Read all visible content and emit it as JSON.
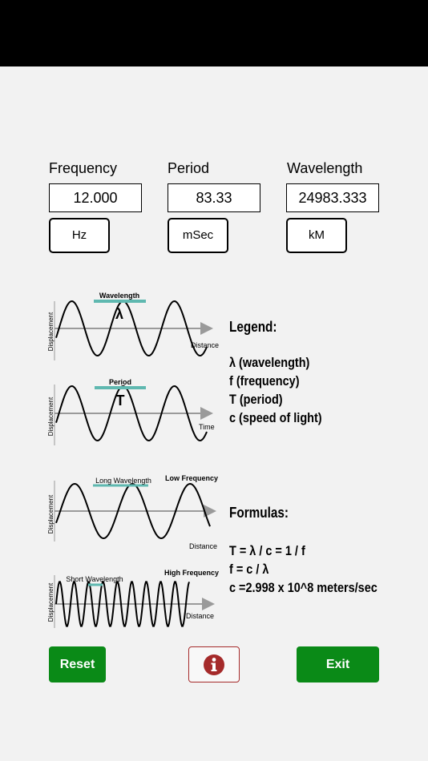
{
  "columns": [
    {
      "label": "Frequency",
      "value": "12.000",
      "unit": "Hz"
    },
    {
      "label": "Period",
      "value": "83.33",
      "unit": "mSec"
    },
    {
      "label": "Wavelength",
      "value": "24983.333",
      "unit": "kM"
    }
  ],
  "diagram": {
    "wave1": {
      "top_label": "Wavelength",
      "symbol": "λ",
      "y_axis": "Displacement",
      "x_axis": "Distance"
    },
    "wave2": {
      "top_label": "Period",
      "symbol": "T",
      "y_axis": "Displacement",
      "x_axis": "Time"
    },
    "wave3": {
      "top_label": "Long Wavelength",
      "corner_label": "Low Frequency",
      "y_axis": "Displacement",
      "x_axis": "Distance"
    },
    "wave4": {
      "top_label": "Short Wavelength",
      "corner_label": "High Frequency",
      "y_axis": "Displacement",
      "x_axis": "Distance"
    }
  },
  "legend": {
    "title": "Legend:",
    "items": [
      "λ (wavelength)",
      "f (frequency)",
      "T (period)",
      "c (speed of light)"
    ]
  },
  "formulas": {
    "title": "Formulas:",
    "items": [
      "T = λ / c = 1 / f",
      "f  = c / λ",
      "c =2.998 x 10^8  meters/sec"
    ]
  },
  "buttons": {
    "reset": "Reset",
    "info_icon": "info-icon",
    "exit": "Exit"
  },
  "colors": {
    "accent_teal": "#5fb8b0",
    "green": "#0a8a17",
    "info_red": "#a52a2a"
  }
}
